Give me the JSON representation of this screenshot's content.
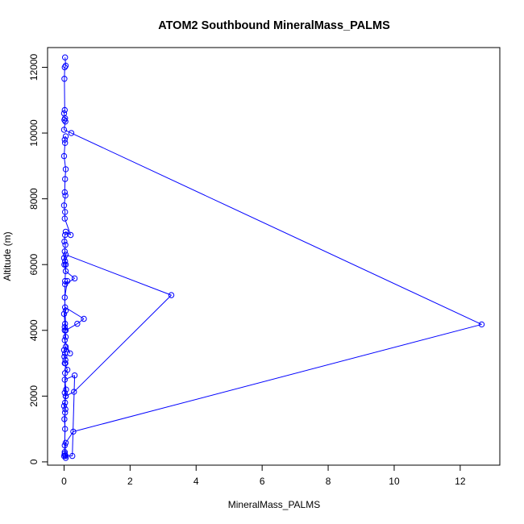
{
  "chart_data": {
    "type": "line",
    "title": "ATOM2 Southbound MineralMass_PALMS",
    "xlabel": "MineralMass_PALMS",
    "ylabel": "Altitude (m)",
    "xlim": [
      -0.5,
      13.2
    ],
    "ylim": [
      -100,
      12600
    ],
    "xticks": [
      0,
      2,
      4,
      6,
      8,
      10,
      12
    ],
    "yticks": [
      0,
      2000,
      4000,
      6000,
      8000,
      10000,
      12000
    ],
    "grid": false,
    "legend": "none",
    "marker": "open-circle",
    "color": "#0000ff",
    "series": [
      {
        "points": [
          [
            0.03,
            12300
          ],
          [
            0.05,
            12050
          ],
          [
            0.02,
            12000
          ],
          [
            0.01,
            11650
          ],
          [
            0.02,
            10700
          ],
          [
            0.0,
            10600
          ],
          [
            0.03,
            10450
          ],
          [
            0.01,
            10400
          ],
          [
            0.04,
            10350
          ],
          [
            0.0,
            10100
          ],
          [
            0.22,
            10000
          ],
          [
            12.65,
            4180
          ],
          [
            0.28,
            920
          ],
          [
            0.05,
            580
          ],
          [
            0.02,
            250
          ],
          [
            0.03,
            200
          ],
          [
            0.0,
            180
          ],
          [
            0.05,
            120
          ],
          [
            0.02,
            500
          ],
          [
            0.03,
            1000
          ],
          [
            0.01,
            1300
          ],
          [
            0.04,
            1600
          ],
          [
            0.0,
            1700
          ],
          [
            0.05,
            2000
          ],
          [
            0.02,
            2100
          ],
          [
            0.03,
            2700
          ],
          [
            0.1,
            2800
          ],
          [
            0.02,
            3000
          ],
          [
            0.04,
            3100
          ],
          [
            0.01,
            3200
          ],
          [
            0.03,
            3300
          ],
          [
            0.0,
            3400
          ],
          [
            0.05,
            3500
          ],
          [
            0.18,
            3300
          ],
          [
            0.02,
            3700
          ],
          [
            0.05,
            3800
          ],
          [
            0.02,
            4100
          ],
          [
            0.03,
            4200
          ],
          [
            0.0,
            4500
          ],
          [
            0.05,
            4600
          ],
          [
            0.03,
            4700
          ],
          [
            0.6,
            4350
          ],
          [
            0.4,
            4200
          ],
          [
            0.05,
            4000
          ],
          [
            0.02,
            5000
          ],
          [
            0.1,
            5500
          ],
          [
            0.03,
            5400
          ],
          [
            0.32,
            5580
          ],
          [
            0.05,
            5800
          ],
          [
            0.01,
            6000
          ],
          [
            0.03,
            6100
          ],
          [
            0.0,
            6200
          ],
          [
            0.05,
            6300
          ],
          [
            3.25,
            5070
          ],
          [
            0.3,
            2130
          ],
          [
            0.05,
            2000
          ],
          [
            0.03,
            1800
          ],
          [
            0.06,
            2200
          ],
          [
            0.02,
            2500
          ],
          [
            0.32,
            2630
          ],
          [
            0.25,
            180
          ],
          [
            0.05,
            180
          ],
          [
            0.02,
            300
          ],
          [
            0.03,
            1500
          ],
          [
            0.04,
            3000
          ],
          [
            0.02,
            4000
          ],
          [
            0.03,
            5500
          ],
          [
            0.05,
            6000
          ],
          [
            0.02,
            6400
          ],
          [
            0.04,
            6600
          ],
          [
            0.01,
            6700
          ],
          [
            0.03,
            6900
          ],
          [
            0.05,
            7000
          ],
          [
            0.2,
            6900
          ],
          [
            0.02,
            7400
          ],
          [
            0.03,
            7600
          ],
          [
            0.0,
            7800
          ],
          [
            0.04,
            8100
          ],
          [
            0.02,
            8200
          ],
          [
            0.03,
            8600
          ],
          [
            0.05,
            8900
          ],
          [
            0.0,
            9300
          ],
          [
            0.03,
            9700
          ],
          [
            0.02,
            9800
          ],
          [
            0.05,
            9900
          ]
        ]
      }
    ]
  }
}
